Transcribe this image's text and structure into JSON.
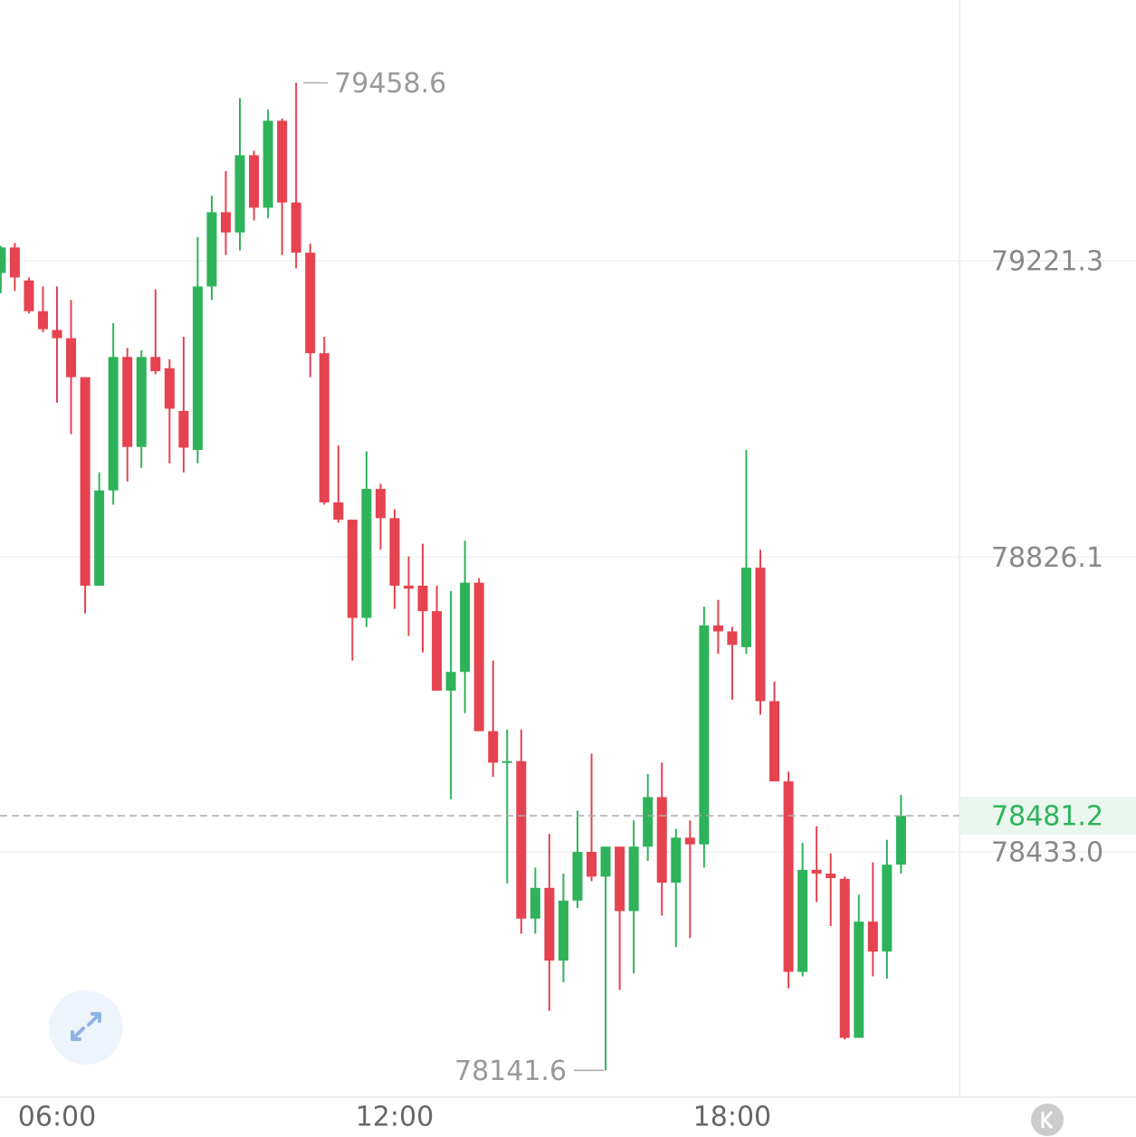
{
  "chart_data": {
    "type": "candlestick",
    "categories": [
      null,
      null,
      null,
      null,
      "06:00",
      null,
      null,
      null,
      null,
      null,
      null,
      null,
      null,
      null,
      null,
      null,
      null,
      null,
      null,
      null,
      null,
      null,
      null,
      null,
      null,
      null,
      null,
      null,
      "12:00",
      null,
      null,
      null,
      null,
      null,
      null,
      null,
      null,
      null,
      null,
      null,
      null,
      null,
      null,
      null,
      null,
      null,
      null,
      null,
      null,
      null,
      null,
      null,
      "18:00",
      null,
      null,
      null,
      null,
      null,
      null,
      null,
      null,
      null,
      null,
      null,
      null
    ],
    "open": [
      79205,
      79239,
      79195,
      79154,
      79129,
      79118,
      79066,
      78788,
      78915,
      79093,
      78973,
      79093,
      79078,
      79021,
      78969,
      79187,
      79286,
      79259,
      79362,
      79292,
      79408,
      79299,
      79232,
      79098,
      78899,
      78876,
      78745,
      78917,
      78878,
      78788,
      78788,
      78754,
      78648,
      78673,
      78792,
      78594,
      78552,
      78554,
      78344,
      78385,
      78288,
      78368,
      78433,
      78400,
      78440,
      78354,
      78440,
      78506,
      78392,
      78452,
      78443,
      78735,
      78727,
      78706,
      78812,
      78634,
      78527,
      78273,
      78409,
      78404,
      78397,
      78185,
      78340,
      78300,
      78416
    ],
    "high": [
      79241,
      79245,
      79199,
      79187,
      79187,
      79169,
      79066,
      78939,
      79138,
      79105,
      79102,
      79183,
      79090,
      79120,
      79253,
      79308,
      79341,
      79438,
      79368,
      79423,
      79411,
      79458.6,
      79244,
      79120,
      78975,
      78876,
      78967,
      78924,
      78890,
      78827,
      78844,
      78788,
      78781,
      78848,
      78798,
      78688,
      78596,
      78596,
      78412,
      78457,
      78404,
      78488,
      78564,
      78440,
      78440,
      78475,
      78537,
      78552,
      78464,
      78475,
      78760,
      78769,
      78733,
      78969,
      78836,
      78660,
      78540,
      78445,
      78467,
      78431,
      78400,
      78376,
      78419,
      78449,
      78509
    ],
    "low": [
      79178,
      79181,
      79151,
      79126,
      79032,
      78990,
      78751,
      78788,
      78896,
      78927,
      78945,
      79070,
      78951,
      78939,
      78951,
      79169,
      79229,
      79235,
      79275,
      79278,
      79229,
      79211,
      79066,
      78896,
      78872,
      78688,
      78733,
      78836,
      78757,
      78721,
      78699,
      78648,
      78503,
      78618,
      78594,
      78533,
      78391,
      78324,
      78324,
      78221,
      78259,
      78358,
      78394,
      78141.6,
      78249,
      78271,
      78421,
      78348,
      78306,
      78318,
      78412,
      78697,
      78636,
      78697,
      78616,
      78527,
      78251,
      78267,
      78366,
      78334,
      78183,
      78185,
      78267,
      78264,
      78404
    ],
    "close": [
      79239,
      79199,
      79154,
      79130,
      79118,
      79066,
      78788,
      78915,
      79093,
      78973,
      79093,
      79074,
      79024,
      78972,
      79187,
      79286,
      79259,
      79362,
      79292,
      79408,
      79299,
      79232,
      79098,
      78899,
      78876,
      78745,
      78917,
      78878,
      78788,
      78784,
      78754,
      78648,
      78673,
      78792,
      78594,
      78552,
      78554,
      78344,
      78385,
      78288,
      78368,
      78433,
      78400,
      78440,
      78354,
      78440,
      78506,
      78392,
      78452,
      78443,
      78735,
      78727,
      78709,
      78812,
      78634,
      78527,
      78273,
      78409,
      78404,
      78398,
      78185,
      78340,
      78300,
      78416,
      78481.2
    ],
    "up_color": "#2fb35a",
    "down_color": "#e5434f",
    "ylim": [
      78108.3,
      79569.0
    ],
    "yticks": [
      79221.3,
      78826.1,
      {
        "value": 78433.0,
        "label": "78433.0"
      }
    ],
    "grid": true,
    "high_label": 79458.6,
    "low_label": 78141.6,
    "last_price": 78481.2
  }
}
